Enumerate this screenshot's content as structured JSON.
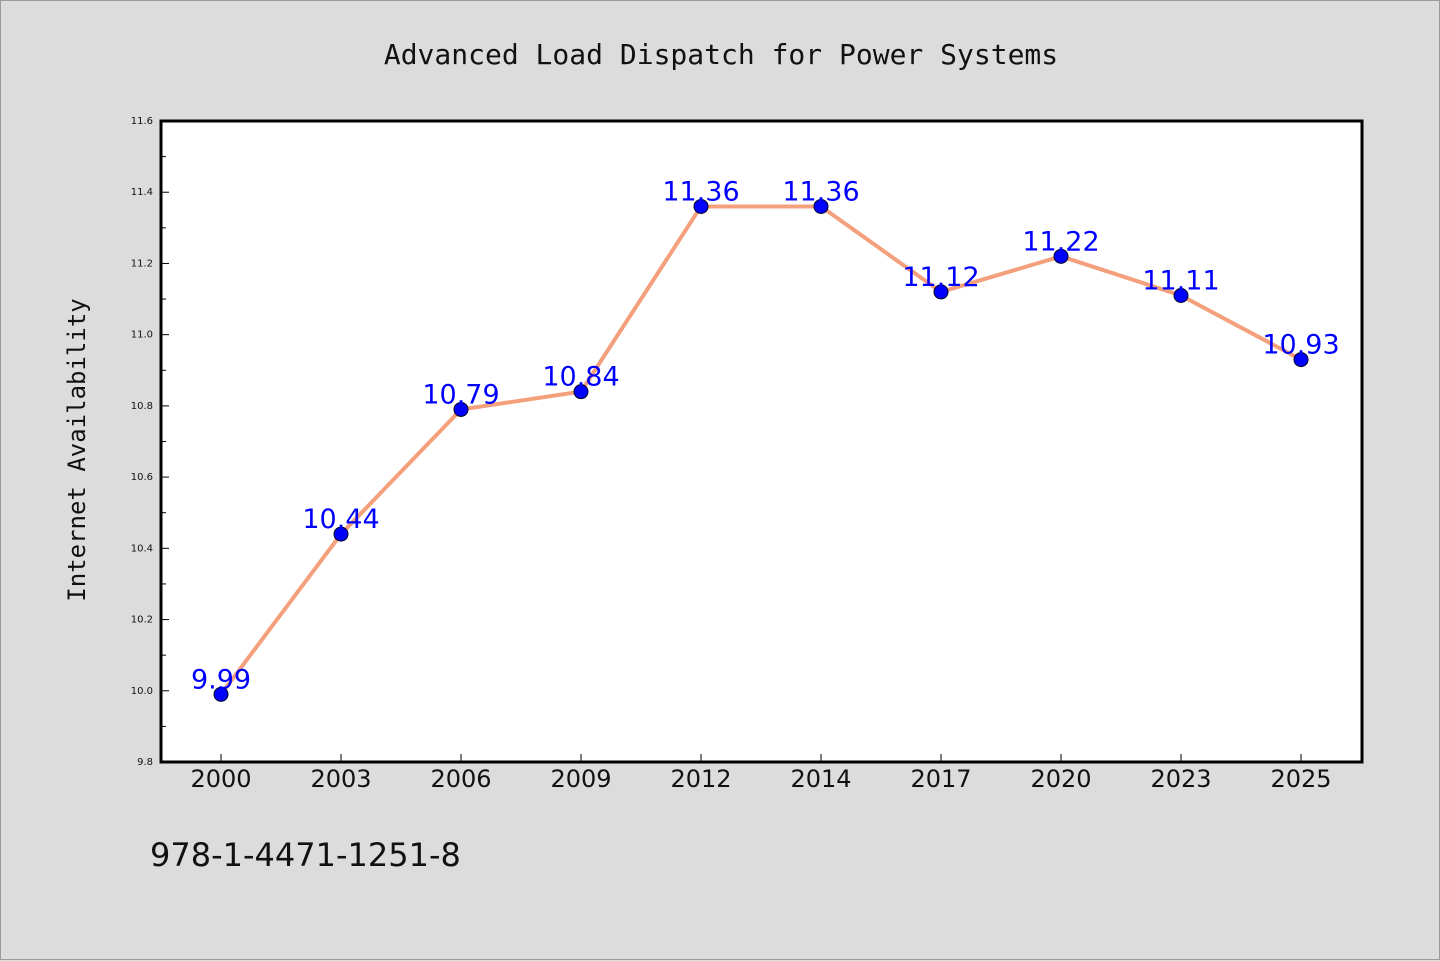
{
  "colors": {
    "background": "#dcdcdc",
    "plot_background": "#ffffff",
    "line": "#f4a07c",
    "marker": "#0000ff",
    "data_label": "#0000ff"
  },
  "footer": {
    "isbn": "978-1-4471-1251-8"
  },
  "chart_data": {
    "type": "line",
    "title": "Advanced Load Dispatch for Power Systems",
    "xlabel": "",
    "ylabel": "Internet Availability",
    "categories": [
      "2000",
      "2003",
      "2006",
      "2009",
      "2012",
      "2014",
      "2017",
      "2020",
      "2023",
      "2025"
    ],
    "values": [
      9.99,
      10.44,
      10.79,
      10.84,
      11.36,
      11.36,
      11.12,
      11.22,
      11.11,
      10.93
    ],
    "value_labels": [
      "9.99",
      "10.44",
      "10.79",
      "10.84",
      "11.36",
      "11.36",
      "11.12",
      "11.22",
      "11.11",
      "10.93"
    ],
    "ylim": [
      9.8,
      11.6
    ],
    "yticks": [
      "9.8",
      "10.0",
      "10.2",
      "10.4",
      "10.6",
      "10.8",
      "11.0",
      "11.2",
      "11.4",
      "11.6"
    ],
    "grid": false,
    "legend": "none"
  }
}
